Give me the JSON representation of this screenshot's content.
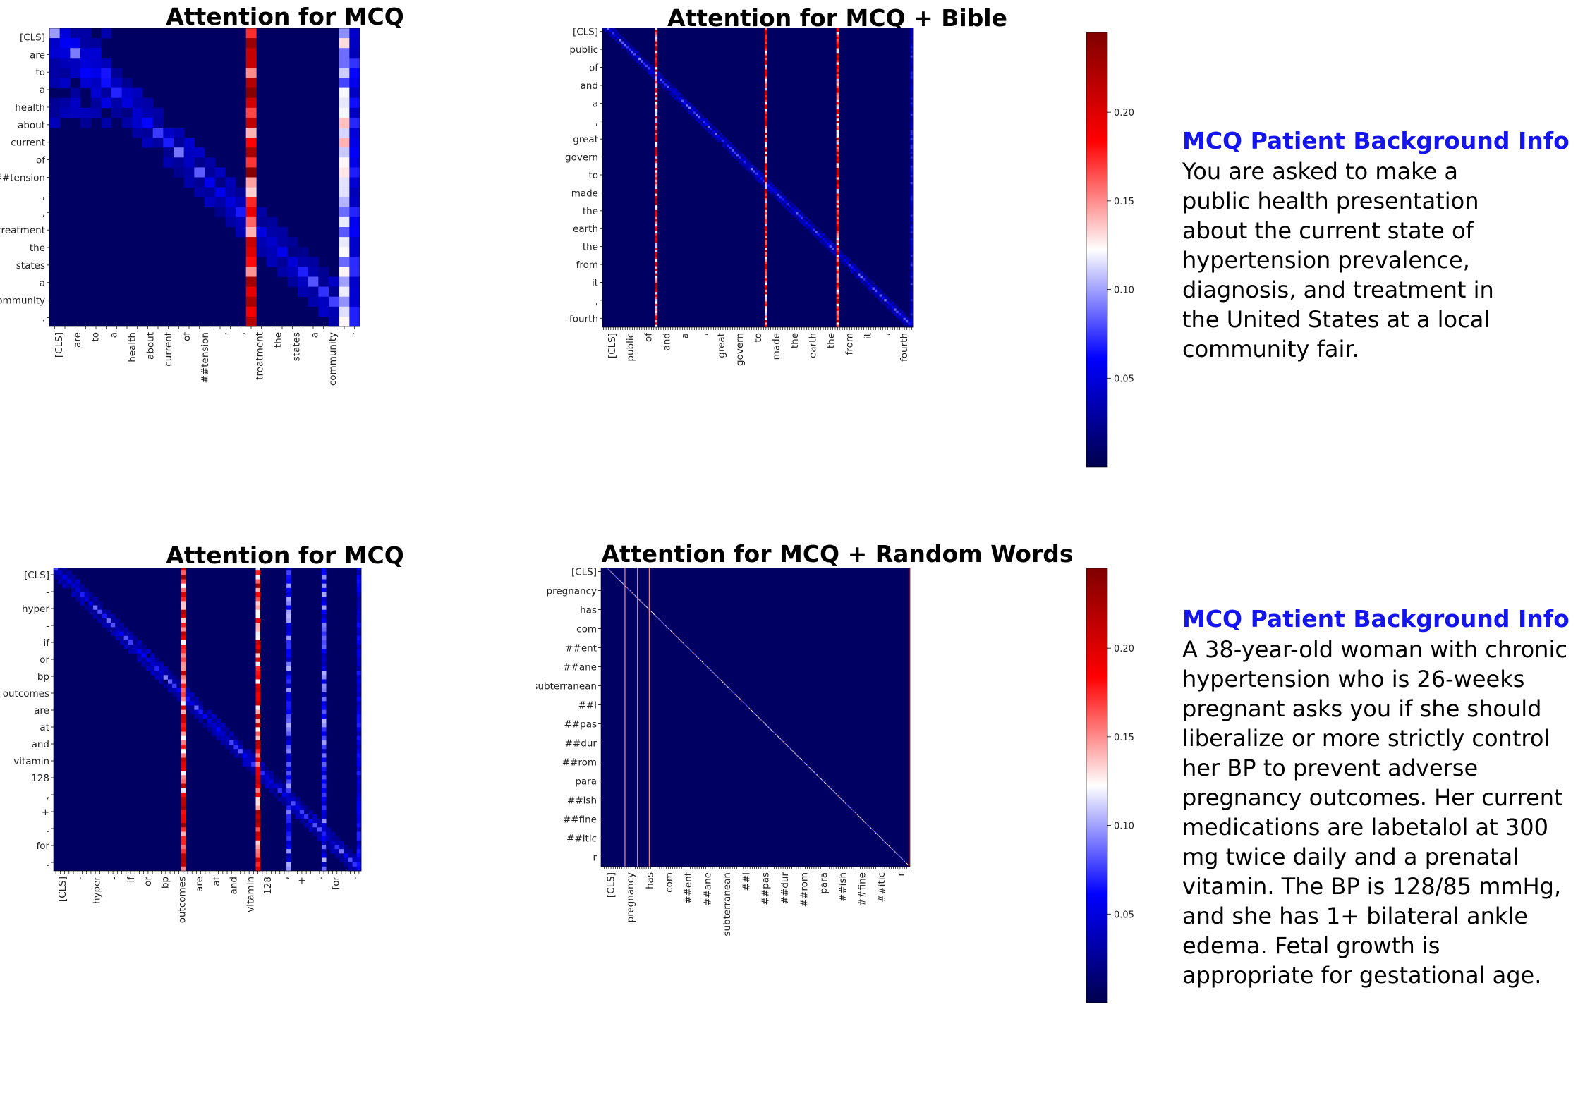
{
  "colors": {
    "low": "#00004c",
    "midlow": "#0000ff",
    "mid": "#ffffff",
    "midhigh": "#ff0000",
    "high": "#7f0000"
  },
  "panels": [
    {
      "id": "p1",
      "title": "Attention for MCQ",
      "n": 30,
      "y_labels": [
        "[CLS]",
        "are",
        "to",
        "a",
        "health",
        "about",
        "current",
        "of",
        "##tension",
        ",",
        ",",
        "treatment",
        "the",
        "states",
        "a",
        "community",
        "."
      ],
      "x_labels": [
        "[CLS]",
        "are",
        "to",
        "a",
        "health",
        "about",
        "current",
        "of",
        "##tension",
        ",",
        ",",
        "treatment",
        "the",
        "states",
        "a",
        "community",
        "."
      ],
      "hot_columns": [
        19
      ],
      "hot_value": 0.18,
      "warm_columns": [
        28
      ],
      "warm_value": 0.11,
      "edge_column_value": 0.055
    },
    {
      "id": "p2",
      "title": "Attention for MCQ + Bible",
      "n": 130,
      "y_labels": [
        "[CLS]",
        "public",
        "of",
        "and",
        "a",
        ",",
        "great",
        "govern",
        "to",
        "made",
        "the",
        "earth",
        "the",
        "from",
        "it",
        ",",
        "fourth"
      ],
      "x_labels": [
        "[CLS]",
        "public",
        "of",
        "and",
        "a",
        ",",
        "great",
        "govern",
        "to",
        "made",
        "the",
        "earth",
        "the",
        "from",
        "it",
        ",",
        "fourth"
      ],
      "hot_columns": [
        22,
        68,
        98
      ],
      "hot_value": 0.16,
      "edge_column_value": 0.055
    },
    {
      "id": "p3",
      "title": "Attention for MCQ",
      "n": 70,
      "y_labels": [
        "[CLS]",
        "-",
        "hyper",
        "-",
        "if",
        "or",
        "bp",
        "outcomes",
        "are",
        "at",
        "and",
        "vitamin",
        "128",
        ",",
        "+",
        ".",
        "for",
        "."
      ],
      "x_labels": [
        "[CLS]",
        "-",
        "hyper",
        "-",
        "if",
        "or",
        "bp",
        "outcomes",
        "are",
        "at",
        "and",
        "vitamin",
        "128",
        ",",
        "+",
        ".",
        "for",
        "."
      ],
      "hot_columns": [
        29,
        46
      ],
      "hot_value": 0.17,
      "warm_columns": [
        53,
        61
      ],
      "warm_value": 0.07,
      "edge_column_value": 0.05
    },
    {
      "id": "p4",
      "title": "Attention for MCQ + Random Words",
      "n": 420,
      "y_labels": [
        "[CLS]",
        "pregnancy",
        "has",
        "com",
        "##ent",
        "##ane",
        "subterranean",
        "##l",
        "##pas",
        "##dur",
        "##rom",
        "para",
        "##ish",
        "##fine",
        "##itic",
        "r"
      ],
      "x_labels": [
        "[CLS]",
        "pregnancy",
        "has",
        "com",
        "##ent",
        "##ane",
        "subterranean",
        "##l",
        "##pas",
        "##dur",
        "##rom",
        "para",
        "##ish",
        "##fine",
        "##itic",
        "r"
      ],
      "hot_columns": [
        32,
        49,
        65
      ],
      "hot_value": 0.15,
      "edge_column_value": 0.2
    }
  ],
  "colorbars": [
    {
      "id": "cb1",
      "ticks": [
        "0.05",
        "0.10",
        "0.15",
        "0.20"
      ],
      "tick_values": [
        0.05,
        0.1,
        0.15,
        0.2
      ],
      "range": [
        0.0,
        0.245
      ]
    },
    {
      "id": "cb2",
      "ticks": [
        "0.05",
        "0.10",
        "0.15",
        "0.20"
      ],
      "tick_values": [
        0.05,
        0.1,
        0.15,
        0.2
      ],
      "range": [
        0.0,
        0.245
      ]
    }
  ],
  "info": [
    {
      "heading": "MCQ Patient Background Info",
      "lines": [
        "You are asked to make a",
        "public health presentation",
        "about the current state of",
        "hypertension prevalence,",
        "diagnosis, and treatment in",
        "the United States at a local",
        "community fair."
      ]
    },
    {
      "heading": "MCQ Patient Background Info",
      "lines": [
        "A 38-year-old woman with chronic",
        "hypertension who is 26-weeks",
        "pregnant asks you if she should",
        "liberalize or more strictly control",
        "her BP to prevent adverse",
        "pregnancy outcomes. Her current",
        "medications are labetalol at 300",
        "mg twice daily and a prenatal",
        "vitamin. The BP is 128/85 mmHg,",
        "and she has 1+ bilateral ankle",
        "edema. Fetal growth is",
        "appropriate for gestational age."
      ]
    }
  ],
  "chart_data": [
    {
      "type": "heatmap",
      "title": "Attention for MCQ",
      "x_tick_labels": [
        "[CLS]",
        "are",
        "to",
        "a",
        "health",
        "about",
        "current",
        "of",
        "##tension",
        ",",
        ",",
        "treatment",
        "the",
        "states",
        "a",
        "community",
        "."
      ],
      "y_tick_labels": [
        "[CLS]",
        "are",
        "to",
        "a",
        "health",
        "about",
        "current",
        "of",
        "##tension",
        ",",
        ",",
        "treatment",
        "the",
        "states",
        "a",
        "community",
        "."
      ],
      "value_range": [
        0.0,
        0.245
      ],
      "colormap": "seismic",
      "note_columns_high_attention": [
        ","
      ]
    },
    {
      "type": "heatmap",
      "title": "Attention for MCQ + Bible",
      "x_tick_labels": [
        "[CLS]",
        "public",
        "of",
        "and",
        "a",
        ",",
        "great",
        "govern",
        "to",
        "made",
        "the",
        "earth",
        "the",
        "from",
        "it",
        ",",
        "fourth"
      ],
      "y_tick_labels": [
        "[CLS]",
        "public",
        "of",
        "and",
        "a",
        ",",
        "great",
        "govern",
        "to",
        "made",
        "the",
        "earth",
        "the",
        "from",
        "it",
        ",",
        "fourth"
      ],
      "value_range": [
        0.0,
        0.245
      ],
      "colormap": "seismic",
      "colorbar_ticks": [
        0.05,
        0.1,
        0.15,
        0.2
      ]
    },
    {
      "type": "heatmap",
      "title": "Attention for MCQ",
      "x_tick_labels": [
        "[CLS]",
        "-",
        "hyper",
        "-",
        "if",
        "or",
        "bp",
        "outcomes",
        "are",
        "at",
        "and",
        "vitamin",
        "128",
        ",",
        "+",
        ".",
        "for",
        "."
      ],
      "y_tick_labels": [
        "[CLS]",
        "-",
        "hyper",
        "-",
        "if",
        "or",
        "bp",
        "outcomes",
        "are",
        "at",
        "and",
        "vitamin",
        "128",
        ",",
        "+",
        ".",
        "for",
        "."
      ],
      "value_range": [
        0.0,
        0.245
      ],
      "colormap": "seismic"
    },
    {
      "type": "heatmap",
      "title": "Attention for MCQ + Random Words",
      "x_tick_labels": [
        "[CLS]",
        "pregnancy",
        "has",
        "com",
        "##ent",
        "##ane",
        "subterranean",
        "##l",
        "##pas",
        "##dur",
        "##rom",
        "para",
        "##ish",
        "##fine",
        "##itic",
        "r"
      ],
      "y_tick_labels": [
        "[CLS]",
        "pregnancy",
        "has",
        "com",
        "##ent",
        "##ane",
        "subterranean",
        "##l",
        "##pas",
        "##dur",
        "##rom",
        "para",
        "##ish",
        "##fine",
        "##itic",
        "r"
      ],
      "value_range": [
        0.0,
        0.245
      ],
      "colormap": "seismic",
      "colorbar_ticks": [
        0.05,
        0.1,
        0.15,
        0.2
      ]
    }
  ]
}
